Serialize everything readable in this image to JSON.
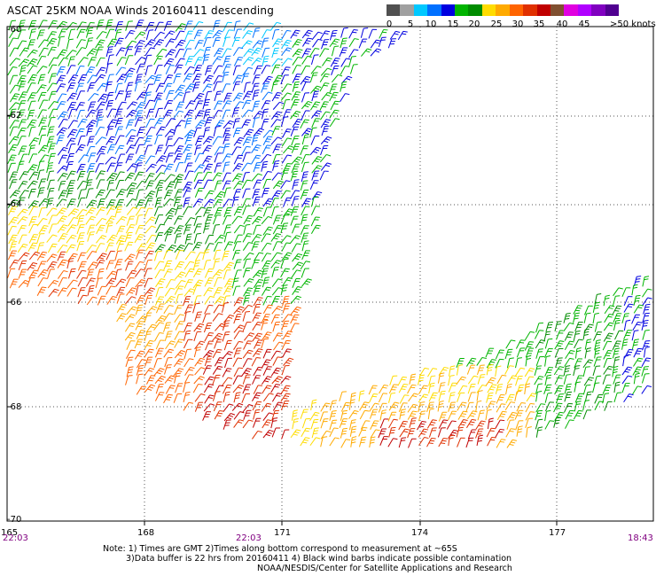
{
  "title": "ASCAT 25KM NOAA Winds 20160411 descending",
  "legend": {
    "colors": [
      "#505050",
      "#a0a0a0",
      "#00c8ff",
      "#0070ff",
      "#0000e0",
      "#00b400",
      "#008c00",
      "#ffdc00",
      "#ffaa00",
      "#ff6400",
      "#e03000",
      "#c00000",
      "#805030",
      "#e000e0",
      "#b000ff",
      "#8000c0",
      "#500090"
    ],
    "tick_labels": [
      "0",
      "5",
      "10",
      "15",
      "20",
      "25",
      "30",
      "35",
      "40",
      "45",
      ">50 knots"
    ]
  },
  "map": {
    "lat_labels": [
      "-60",
      "-62",
      "-64",
      "-66",
      "-68",
      "-70"
    ],
    "lon_labels": [
      "165",
      "168",
      "171",
      "174",
      "177"
    ],
    "time_labels": [
      "22:03",
      "22:03",
      "18:43"
    ]
  },
  "notes": [
    "Note: 1) Times are GMT 2)Times along bottom correspond to measurement at ~65S",
    "3)Data buffer is 22 hrs from 20160411 4) Black wind barbs indicate possible contamination",
    "NOAA/NESDIS/Center for Satellite Applications and Research"
  ]
}
